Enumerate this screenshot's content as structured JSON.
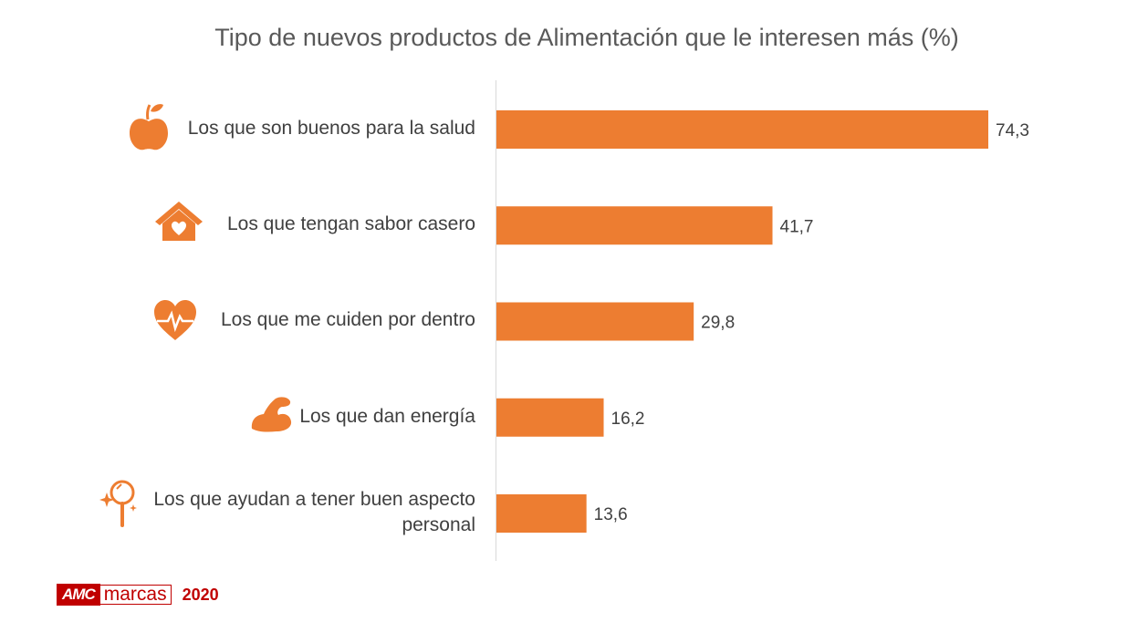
{
  "chart_data": {
    "type": "bar",
    "orientation": "horizontal",
    "title": "Tipo de nuevos productos de Alimentación que le interesen más (%)",
    "categories": [
      "Los que son buenos para la salud",
      "Los que tengan sabor casero",
      "Los que me cuiden por dentro",
      "Los que dan energía",
      "Los que ayudan a tener buen aspecto personal"
    ],
    "values": [
      74.3,
      41.7,
      29.8,
      16.2,
      13.6
    ],
    "value_labels": [
      "74,3",
      "41,7",
      "29,8",
      "16,2",
      "13,6"
    ],
    "icons": [
      "apple-icon",
      "house-heart-icon",
      "heart-pulse-icon",
      "flexed-arm-icon",
      "magnifier-sparkle-icon"
    ],
    "xlim": [
      0,
      100
    ],
    "grid": false,
    "bar_color": "#ED7D31"
  },
  "footer": {
    "logo_amc": "AMC",
    "logo_marcas": "marcas",
    "year": "2020",
    "brand_color": "#C00000"
  }
}
